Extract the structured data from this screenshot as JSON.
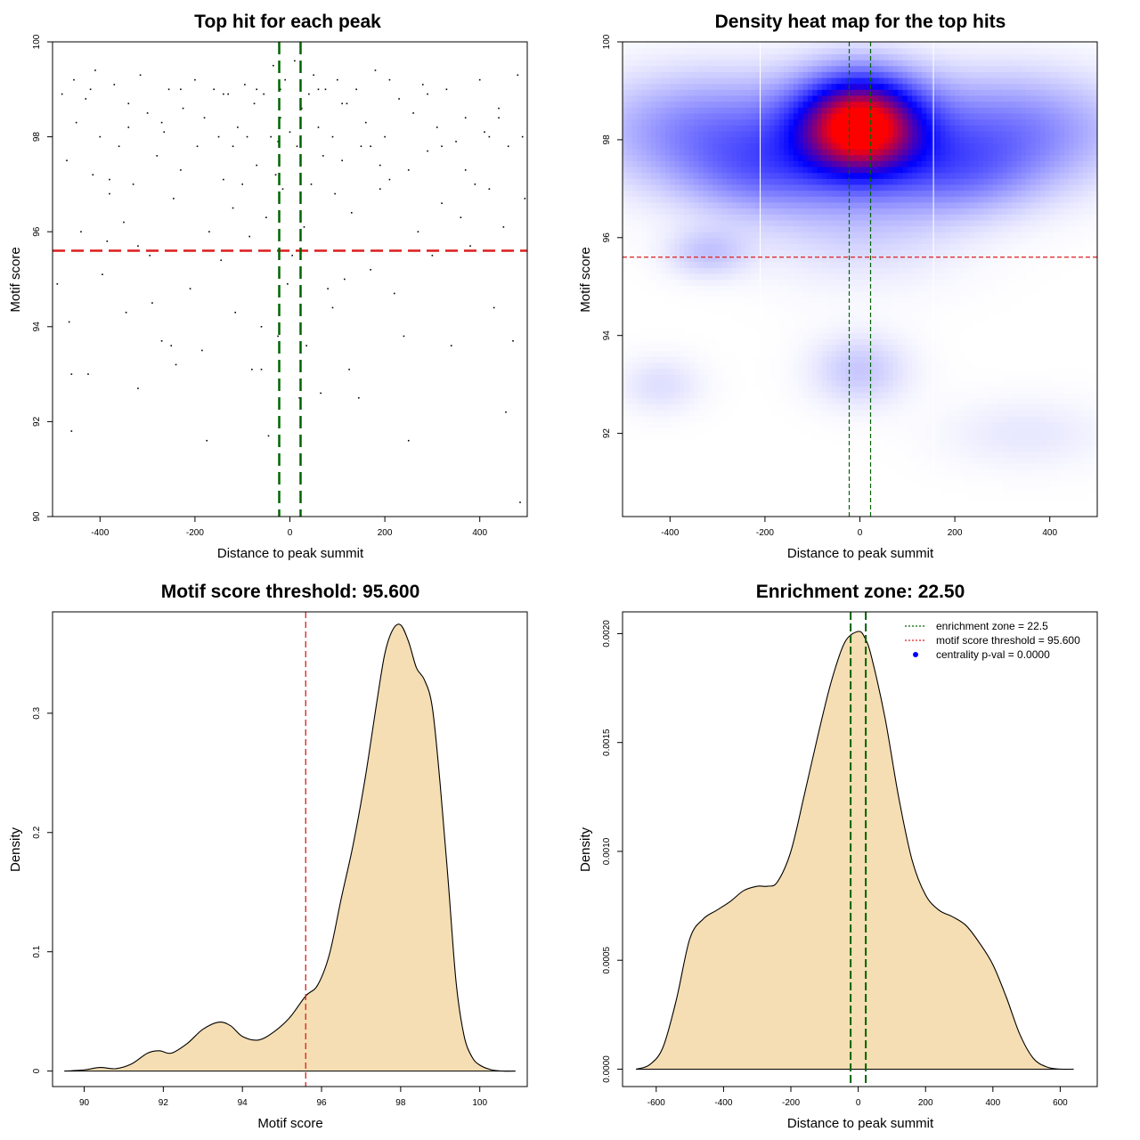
{
  "colors": {
    "threshold": "#dd1c1c",
    "zone": "#006400",
    "fill": "#f5deb3",
    "density_low": "#ffffff",
    "density_mid": "#0000ff",
    "density_high": "#ff0000",
    "centrality": "#0000ff"
  },
  "chart_data": [
    {
      "id": "scatter",
      "type": "scatter",
      "title": "Top hit for each peak",
      "xlabel": "Distance to peak summit",
      "ylabel": "Motif score",
      "xlim": [
        -500,
        500
      ],
      "ylim": [
        90,
        100
      ],
      "xticks": [
        -400,
        -200,
        0,
        200,
        400
      ],
      "yticks": [
        90,
        92,
        94,
        96,
        98,
        100
      ],
      "hline": 95.6,
      "vlines": [
        -22.5,
        22.5
      ],
      "grid": false,
      "points": [
        [
          -480,
          98.9
        ],
        [
          -470,
          97.5
        ],
        [
          -465,
          94.1
        ],
        [
          -460,
          93.0
        ],
        [
          -455,
          99.2
        ],
        [
          -450,
          98.3
        ],
        [
          -440,
          96.0
        ],
        [
          -430,
          98.8
        ],
        [
          -425,
          93.0
        ],
        [
          -415,
          97.2
        ],
        [
          -410,
          99.4
        ],
        [
          -400,
          98.0
        ],
        [
          -395,
          95.1
        ],
        [
          -385,
          95.8
        ],
        [
          -380,
          96.8
        ],
        [
          -370,
          99.1
        ],
        [
          -360,
          97.8
        ],
        [
          -350,
          96.2
        ],
        [
          -345,
          94.3
        ],
        [
          -340,
          98.7
        ],
        [
          -330,
          97.0
        ],
        [
          -320,
          95.7
        ],
        [
          -315,
          99.3
        ],
        [
          -300,
          98.5
        ],
        [
          -295,
          95.5
        ],
        [
          -290,
          94.5
        ],
        [
          -280,
          97.6
        ],
        [
          -270,
          93.7
        ],
        [
          -265,
          98.1
        ],
        [
          -255,
          99.0
        ],
        [
          -245,
          96.7
        ],
        [
          -240,
          93.2
        ],
        [
          -230,
          97.3
        ],
        [
          -225,
          98.6
        ],
        [
          -210,
          94.8
        ],
        [
          -200,
          99.2
        ],
        [
          -195,
          97.8
        ],
        [
          -185,
          93.5
        ],
        [
          -180,
          98.4
        ],
        [
          -175,
          91.6
        ],
        [
          -170,
          96.0
        ],
        [
          -160,
          99.0
        ],
        [
          -150,
          98.0
        ],
        [
          -145,
          95.4
        ],
        [
          -140,
          97.1
        ],
        [
          -130,
          98.9
        ],
        [
          -120,
          96.5
        ],
        [
          -115,
          94.3
        ],
        [
          -110,
          98.2
        ],
        [
          -100,
          97.0
        ],
        [
          -95,
          99.1
        ],
        [
          -90,
          98.0
        ],
        [
          -85,
          95.9
        ],
        [
          -80,
          93.1
        ],
        [
          -75,
          98.7
        ],
        [
          -70,
          97.4
        ],
        [
          -60,
          94.0
        ],
        [
          -55,
          98.9
        ],
        [
          -50,
          96.3
        ],
        [
          -45,
          91.7
        ],
        [
          -40,
          98.0
        ],
        [
          -35,
          99.5
        ],
        [
          -30,
          97.2
        ],
        [
          -25,
          93.8
        ],
        [
          -20,
          98.4
        ],
        [
          -15,
          96.9
        ],
        [
          -10,
          99.2
        ],
        [
          -5,
          94.9
        ],
        [
          0,
          98.1
        ],
        [
          5,
          95.5
        ],
        [
          10,
          99.6
        ],
        [
          15,
          97.8
        ],
        [
          20,
          92.5
        ],
        [
          25,
          98.6
        ],
        [
          30,
          96.1
        ],
        [
          35,
          93.6
        ],
        [
          40,
          98.9
        ],
        [
          45,
          97.0
        ],
        [
          50,
          99.3
        ],
        [
          55,
          95.6
        ],
        [
          60,
          98.2
        ],
        [
          65,
          92.6
        ],
        [
          70,
          97.6
        ],
        [
          75,
          99.0
        ],
        [
          80,
          94.8
        ],
        [
          90,
          98.0
        ],
        [
          95,
          96.8
        ],
        [
          100,
          99.2
        ],
        [
          110,
          97.5
        ],
        [
          115,
          95.0
        ],
        [
          120,
          98.7
        ],
        [
          125,
          93.1
        ],
        [
          130,
          96.4
        ],
        [
          140,
          99.0
        ],
        [
          145,
          92.5
        ],
        [
          150,
          97.8
        ],
        [
          160,
          98.3
        ],
        [
          170,
          95.2
        ],
        [
          180,
          99.4
        ],
        [
          190,
          96.9
        ],
        [
          200,
          98.0
        ],
        [
          210,
          97.1
        ],
        [
          220,
          94.7
        ],
        [
          230,
          98.8
        ],
        [
          240,
          93.8
        ],
        [
          250,
          97.3
        ],
        [
          260,
          98.5
        ],
        [
          270,
          96.0
        ],
        [
          280,
          99.1
        ],
        [
          290,
          97.7
        ],
        [
          300,
          95.5
        ],
        [
          310,
          98.2
        ],
        [
          320,
          96.6
        ],
        [
          330,
          99.0
        ],
        [
          340,
          93.6
        ],
        [
          350,
          97.9
        ],
        [
          360,
          96.3
        ],
        [
          370,
          98.4
        ],
        [
          380,
          95.7
        ],
        [
          390,
          97.0
        ],
        [
          400,
          99.2
        ],
        [
          410,
          98.1
        ],
        [
          420,
          96.9
        ],
        [
          430,
          94.4
        ],
        [
          440,
          98.6
        ],
        [
          450,
          96.1
        ],
        [
          455,
          92.2
        ],
        [
          460,
          97.8
        ],
        [
          470,
          93.7
        ],
        [
          480,
          99.3
        ],
        [
          485,
          90.3
        ],
        [
          490,
          98.0
        ],
        [
          495,
          96.7
        ],
        [
          -460,
          91.8
        ],
        [
          -320,
          92.7
        ],
        [
          -250,
          93.6
        ],
        [
          -60,
          93.1
        ],
        [
          90,
          94.4
        ],
        [
          190,
          97.4
        ],
        [
          250,
          91.6
        ],
        [
          -490,
          94.9
        ],
        [
          -380,
          97.1
        ],
        [
          -270,
          98.3
        ],
        [
          -140,
          98.9
        ],
        [
          -20,
          99.0
        ],
        [
          60,
          99.0
        ],
        [
          170,
          97.8
        ],
        [
          290,
          98.9
        ],
        [
          370,
          97.3
        ],
        [
          440,
          98.4
        ],
        [
          -420,
          99.0
        ],
        [
          -340,
          98.2
        ],
        [
          -230,
          99.0
        ],
        [
          -120,
          97.8
        ],
        [
          -70,
          99.0
        ],
        [
          110,
          98.7
        ],
        [
          210,
          99.2
        ],
        [
          320,
          97.8
        ],
        [
          420,
          98.0
        ],
        [
          -25,
          97.9
        ]
      ]
    },
    {
      "id": "heatmap",
      "type": "heatmap",
      "title": "Density heat map for the top hits",
      "xlabel": "Distance to peak summit",
      "ylabel": "Motif score",
      "xlim": [
        -500,
        500
      ],
      "ylim": [
        90.3,
        100
      ],
      "xticks": [
        -400,
        -200,
        0,
        200,
        400
      ],
      "yticks": [
        92,
        94,
        96,
        98,
        100
      ],
      "hline": 95.6,
      "vlines": [
        -22.5,
        22.5
      ],
      "light_vlines": [
        -210,
        155
      ],
      "kernels": [
        [
          0,
          98.3,
          90,
          0.7,
          1.0
        ],
        [
          -300,
          98.2,
          180,
          0.8,
          0.28
        ],
        [
          300,
          98.2,
          180,
          0.8,
          0.28
        ],
        [
          -320,
          95.7,
          60,
          0.35,
          0.12
        ],
        [
          0,
          93.3,
          70,
          0.5,
          0.12
        ],
        [
          -420,
          93.0,
          60,
          0.4,
          0.07
        ],
        [
          350,
          92.0,
          120,
          0.5,
          0.05
        ],
        [
          -200,
          97.3,
          120,
          0.6,
          0.2
        ],
        [
          200,
          97.3,
          120,
          0.6,
          0.2
        ],
        [
          0,
          96.3,
          150,
          0.8,
          0.1
        ]
      ]
    },
    {
      "id": "score_density",
      "type": "area",
      "title": "Motif score threshold: 95.600",
      "xlabel": "Motif score",
      "ylabel": "Density",
      "xlim": [
        89.2,
        101.2
      ],
      "ylim": [
        -0.013,
        0.385
      ],
      "xticks": [
        90,
        92,
        94,
        96,
        98,
        100
      ],
      "yticks": [
        0.0,
        0.1,
        0.2,
        0.3
      ],
      "vline": 95.6,
      "x": [
        89.5,
        90.0,
        90.4,
        90.8,
        91.2,
        91.6,
        91.9,
        92.2,
        92.6,
        93.0,
        93.4,
        93.7,
        94.0,
        94.4,
        94.8,
        95.2,
        95.6,
        95.9,
        96.2,
        96.5,
        96.8,
        97.1,
        97.4,
        97.6,
        97.8,
        98.0,
        98.2,
        98.4,
        98.6,
        98.8,
        99.0,
        99.2,
        99.4,
        99.6,
        99.8,
        100.0,
        100.3,
        100.6,
        100.9
      ],
      "y": [
        0.0,
        0.001,
        0.003,
        0.002,
        0.006,
        0.015,
        0.017,
        0.015,
        0.023,
        0.035,
        0.041,
        0.038,
        0.029,
        0.026,
        0.033,
        0.045,
        0.063,
        0.072,
        0.098,
        0.145,
        0.19,
        0.245,
        0.31,
        0.35,
        0.37,
        0.374,
        0.36,
        0.338,
        0.328,
        0.305,
        0.24,
        0.16,
        0.075,
        0.03,
        0.012,
        0.005,
        0.001,
        0.0,
        0.0
      ]
    },
    {
      "id": "distance_density",
      "type": "area",
      "title": "Enrichment zone: 22.50",
      "xlabel": "Distance to peak summit",
      "ylabel": "Density",
      "xlim": [
        -700,
        710
      ],
      "ylim": [
        -8e-05,
        0.0021
      ],
      "xticks": [
        -600,
        -400,
        -200,
        0,
        200,
        400,
        600
      ],
      "yticks": [
        0.0,
        0.0005,
        0.001,
        0.0015,
        0.002
      ],
      "ytick_labels": [
        "0.0000",
        "0.0005",
        "0.0010",
        "0.0015",
        "0.0020"
      ],
      "vlines": [
        -22.5,
        22.5
      ],
      "x": [
        -660,
        -620,
        -580,
        -540,
        -500,
        -460,
        -420,
        -380,
        -340,
        -300,
        -270,
        -240,
        -200,
        -160,
        -120,
        -80,
        -40,
        0,
        20,
        40,
        80,
        120,
        160,
        200,
        240,
        280,
        320,
        360,
        400,
        440,
        480,
        520,
        560,
        600,
        640
      ],
      "y": [
        0.0,
        2e-05,
        0.0001,
        0.00032,
        0.0006,
        0.00069,
        0.00073,
        0.00077,
        0.00082,
        0.00084,
        0.00084,
        0.00086,
        0.001,
        0.00126,
        0.00153,
        0.00178,
        0.00196,
        0.00201,
        0.00198,
        0.00189,
        0.00161,
        0.00125,
        0.00096,
        0.0008,
        0.00073,
        0.0007,
        0.00066,
        0.00058,
        0.00048,
        0.00033,
        0.00016,
        5e-05,
        1e-05,
        0.0,
        0.0
      ],
      "legend": {
        "placement": "top-right",
        "items": [
          {
            "label": "enrichment zone = 22.5",
            "style": "dotted-green"
          },
          {
            "label": "motif score threshold = 95.600",
            "style": "dotted-red"
          },
          {
            "label": "centrality p-val = 0.0000",
            "style": "point-blue"
          }
        ]
      }
    }
  ]
}
